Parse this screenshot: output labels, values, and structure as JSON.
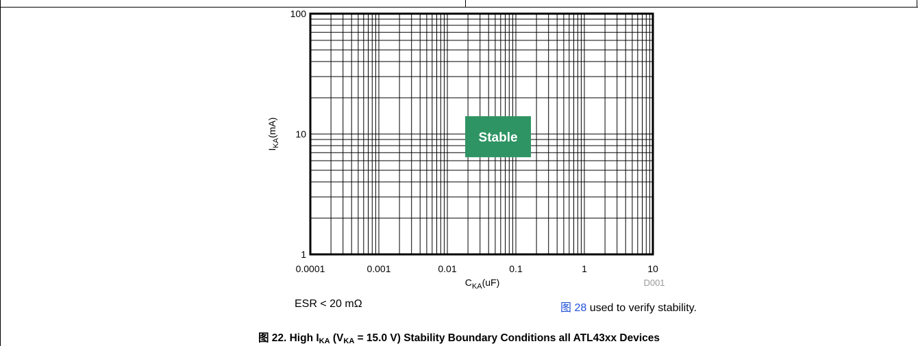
{
  "chart_data": {
    "type": "line",
    "title": "",
    "xscale": "log",
    "yscale": "log",
    "xlim": [
      0.0001,
      10
    ],
    "ylim": [
      1,
      100
    ],
    "xticks": [
      0.0001,
      0.001,
      0.01,
      0.1,
      1,
      10
    ],
    "xtick_labels": [
      "0.0001",
      "0.001",
      "0.01",
      "0.1",
      "1",
      "10"
    ],
    "yticks": [
      1,
      10,
      100
    ],
    "ytick_labels": [
      "1",
      "10",
      "100"
    ],
    "xlabel": {
      "main": "C",
      "sub": "KA",
      "rest": "(uF)"
    },
    "ylabel": {
      "main": "I",
      "sub": "KA",
      "rest": "(mA)"
    },
    "grid": true,
    "series": [],
    "annotations": [
      {
        "text": "Stable",
        "x": 0.055,
        "y": 9.5,
        "color": "#2e9463"
      }
    ],
    "figure_id": "D001"
  },
  "notes": {
    "esr": "ESR < 20 mΩ",
    "verify_ref": "图 28",
    "verify_text": " used to verify stability."
  },
  "caption": {
    "part1": "图 22. High I",
    "sub1": "KA",
    "part2": " (V",
    "sub2": "KA",
    "part3": " = 15.0 V) Stability Boundary Conditions all ATL43xx Devices"
  }
}
